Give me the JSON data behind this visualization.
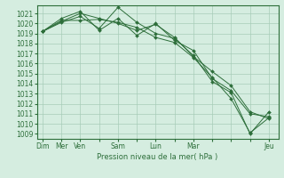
{
  "bg_color": "#d5ede0",
  "grid_color": "#a8ccb8",
  "line_color": "#2d6e3a",
  "marker_color": "#2d6e3a",
  "xlabel": "Pression niveau de la mer( hPa )",
  "ylim": [
    1008.5,
    1021.8
  ],
  "yticks": [
    1009,
    1010,
    1011,
    1012,
    1013,
    1014,
    1015,
    1016,
    1017,
    1018,
    1019,
    1020,
    1021
  ],
  "xtick_labels": [
    "Dim",
    "Mer",
    "Ven",
    "",
    "Sam",
    "",
    "Lun",
    "",
    "Mar",
    "",
    "",
    "",
    "Jeu"
  ],
  "xtick_positions": [
    0,
    1,
    2,
    3,
    4,
    5,
    6,
    7,
    8,
    9,
    10,
    11,
    12
  ],
  "series": [
    [
      1019.2,
      1020.2,
      1021.0,
      1020.5,
      1020.0,
      1019.3,
      1019.9,
      1018.6,
      1016.7,
      1015.2,
      1013.8,
      1011.2,
      1010.5
    ],
    [
      1019.2,
      1020.5,
      1021.2,
      1019.3,
      1020.5,
      1018.8,
      1020.0,
      1018.3,
      1017.3,
      1014.5,
      1013.3,
      1011.0,
      1010.7
    ],
    [
      1019.2,
      1020.1,
      1020.7,
      1019.5,
      1021.6,
      1020.1,
      1019.0,
      1018.5,
      1016.8,
      1014.2,
      1013.1,
      1009.0,
      1011.2
    ],
    [
      1019.2,
      1020.3,
      1020.3,
      1020.4,
      1020.1,
      1019.6,
      1018.6,
      1018.1,
      1016.6,
      1014.6,
      1012.5,
      1009.1,
      1010.6
    ]
  ]
}
